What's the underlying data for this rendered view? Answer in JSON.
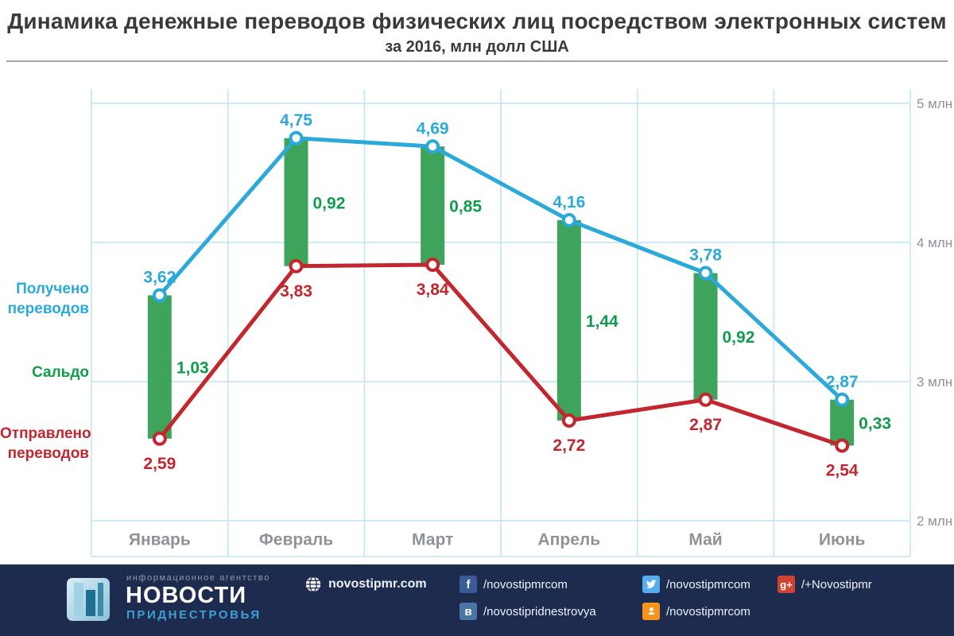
{
  "title": "Динамика денежные переводов физических лиц посредством электронных систем",
  "subtitle": "за 2016, млн долл США",
  "chart_data": {
    "type": "line",
    "categories": [
      "Январь",
      "Февраль",
      "Март",
      "Апрель",
      "Май",
      "Июнь"
    ],
    "series": [
      {
        "name": "Получено переводов",
        "role": "received",
        "type": "line",
        "color": "#2ba9d8",
        "values": [
          3.62,
          4.75,
          4.69,
          4.16,
          3.78,
          2.87
        ]
      },
      {
        "name": "Отправлено переводов",
        "role": "sent",
        "type": "line",
        "color": "#c2262e",
        "values": [
          2.59,
          3.83,
          3.84,
          2.72,
          2.87,
          2.54
        ]
      },
      {
        "name": "Сальдо",
        "role": "saldo",
        "type": "bar-span",
        "color": "#3ea45c",
        "label_color": "#0f9d4c",
        "values": [
          1.03,
          0.92,
          0.85,
          1.44,
          0.92,
          0.33
        ]
      }
    ],
    "y_axis": {
      "range": [
        2,
        5
      ],
      "ticks": [
        2,
        3,
        4,
        5
      ],
      "tick_labels": [
        "2 млн",
        "3 млн",
        "4 млн",
        "5 млн"
      ]
    },
    "grid": "on",
    "grid_color": "#bfe3f0",
    "axis_text_color": "#8d9398",
    "legend_position": "left",
    "value_label_format": "comma-decimal"
  },
  "footer": {
    "agency_tag": "информационное агентство",
    "brand_top": "НОВОСТИ",
    "brand_bottom": "ПРИДНЕСТРОВЬЯ",
    "background_color": "#1d2c4e",
    "links": [
      {
        "icon": "globe-icon",
        "text": "novostipmr.com"
      },
      {
        "icon": "facebook-icon",
        "text": "/novostipmrcom"
      },
      {
        "icon": "twitter-icon",
        "text": "/novostipmrcom"
      },
      {
        "icon": "gplus-icon",
        "text": "/+Novostipmr"
      },
      {
        "icon": "vk-icon",
        "text": "/novostipridnestrovya"
      },
      {
        "icon": "ok-icon",
        "text": "/novostipmrcom"
      }
    ],
    "icon_glyphs": {
      "facebook-icon": "f",
      "gplus-icon": "g+",
      "vk-icon": "в"
    }
  }
}
